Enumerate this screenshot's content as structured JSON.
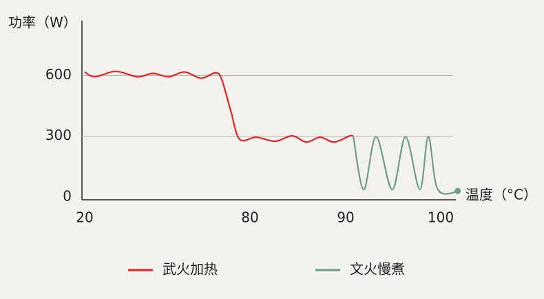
{
  "chart_data": {
    "type": "line",
    "y_label": "功率（W）",
    "x_label": "温度（°C）",
    "xlim": [
      20,
      102
    ],
    "xticks": [
      20,
      80,
      90,
      100
    ],
    "ylim": [
      0,
      870
    ],
    "yticks": [
      0,
      300,
      600
    ],
    "grid": true,
    "series": [
      {
        "name": "武火加热",
        "color": "#e02424",
        "x": [
          20,
          23.75,
          31.25,
          39.25,
          44.75,
          50.5,
          56.25,
          62.25,
          67.5,
          69.75,
          73,
          76.25,
          80.65,
          82.66,
          84.39,
          85.9,
          87.34,
          88.78,
          90.43,
          90.8
        ],
        "values": [
          617,
          593,
          620,
          593,
          610,
          593,
          617,
          586,
          613,
          580,
          427,
          285,
          295,
          275,
          302,
          271,
          295,
          271,
          302,
          300
        ]
      },
      {
        "name": "文火慢煮",
        "color": "#6b9e85",
        "x": [
          90.8,
          91.9,
          93.2,
          94.9,
          96.3,
          97.8,
          98.7,
          99.7,
          102
        ],
        "values": [
          300,
          37,
          298,
          37,
          297,
          37,
          297,
          37,
          30
        ]
      }
    ]
  }
}
